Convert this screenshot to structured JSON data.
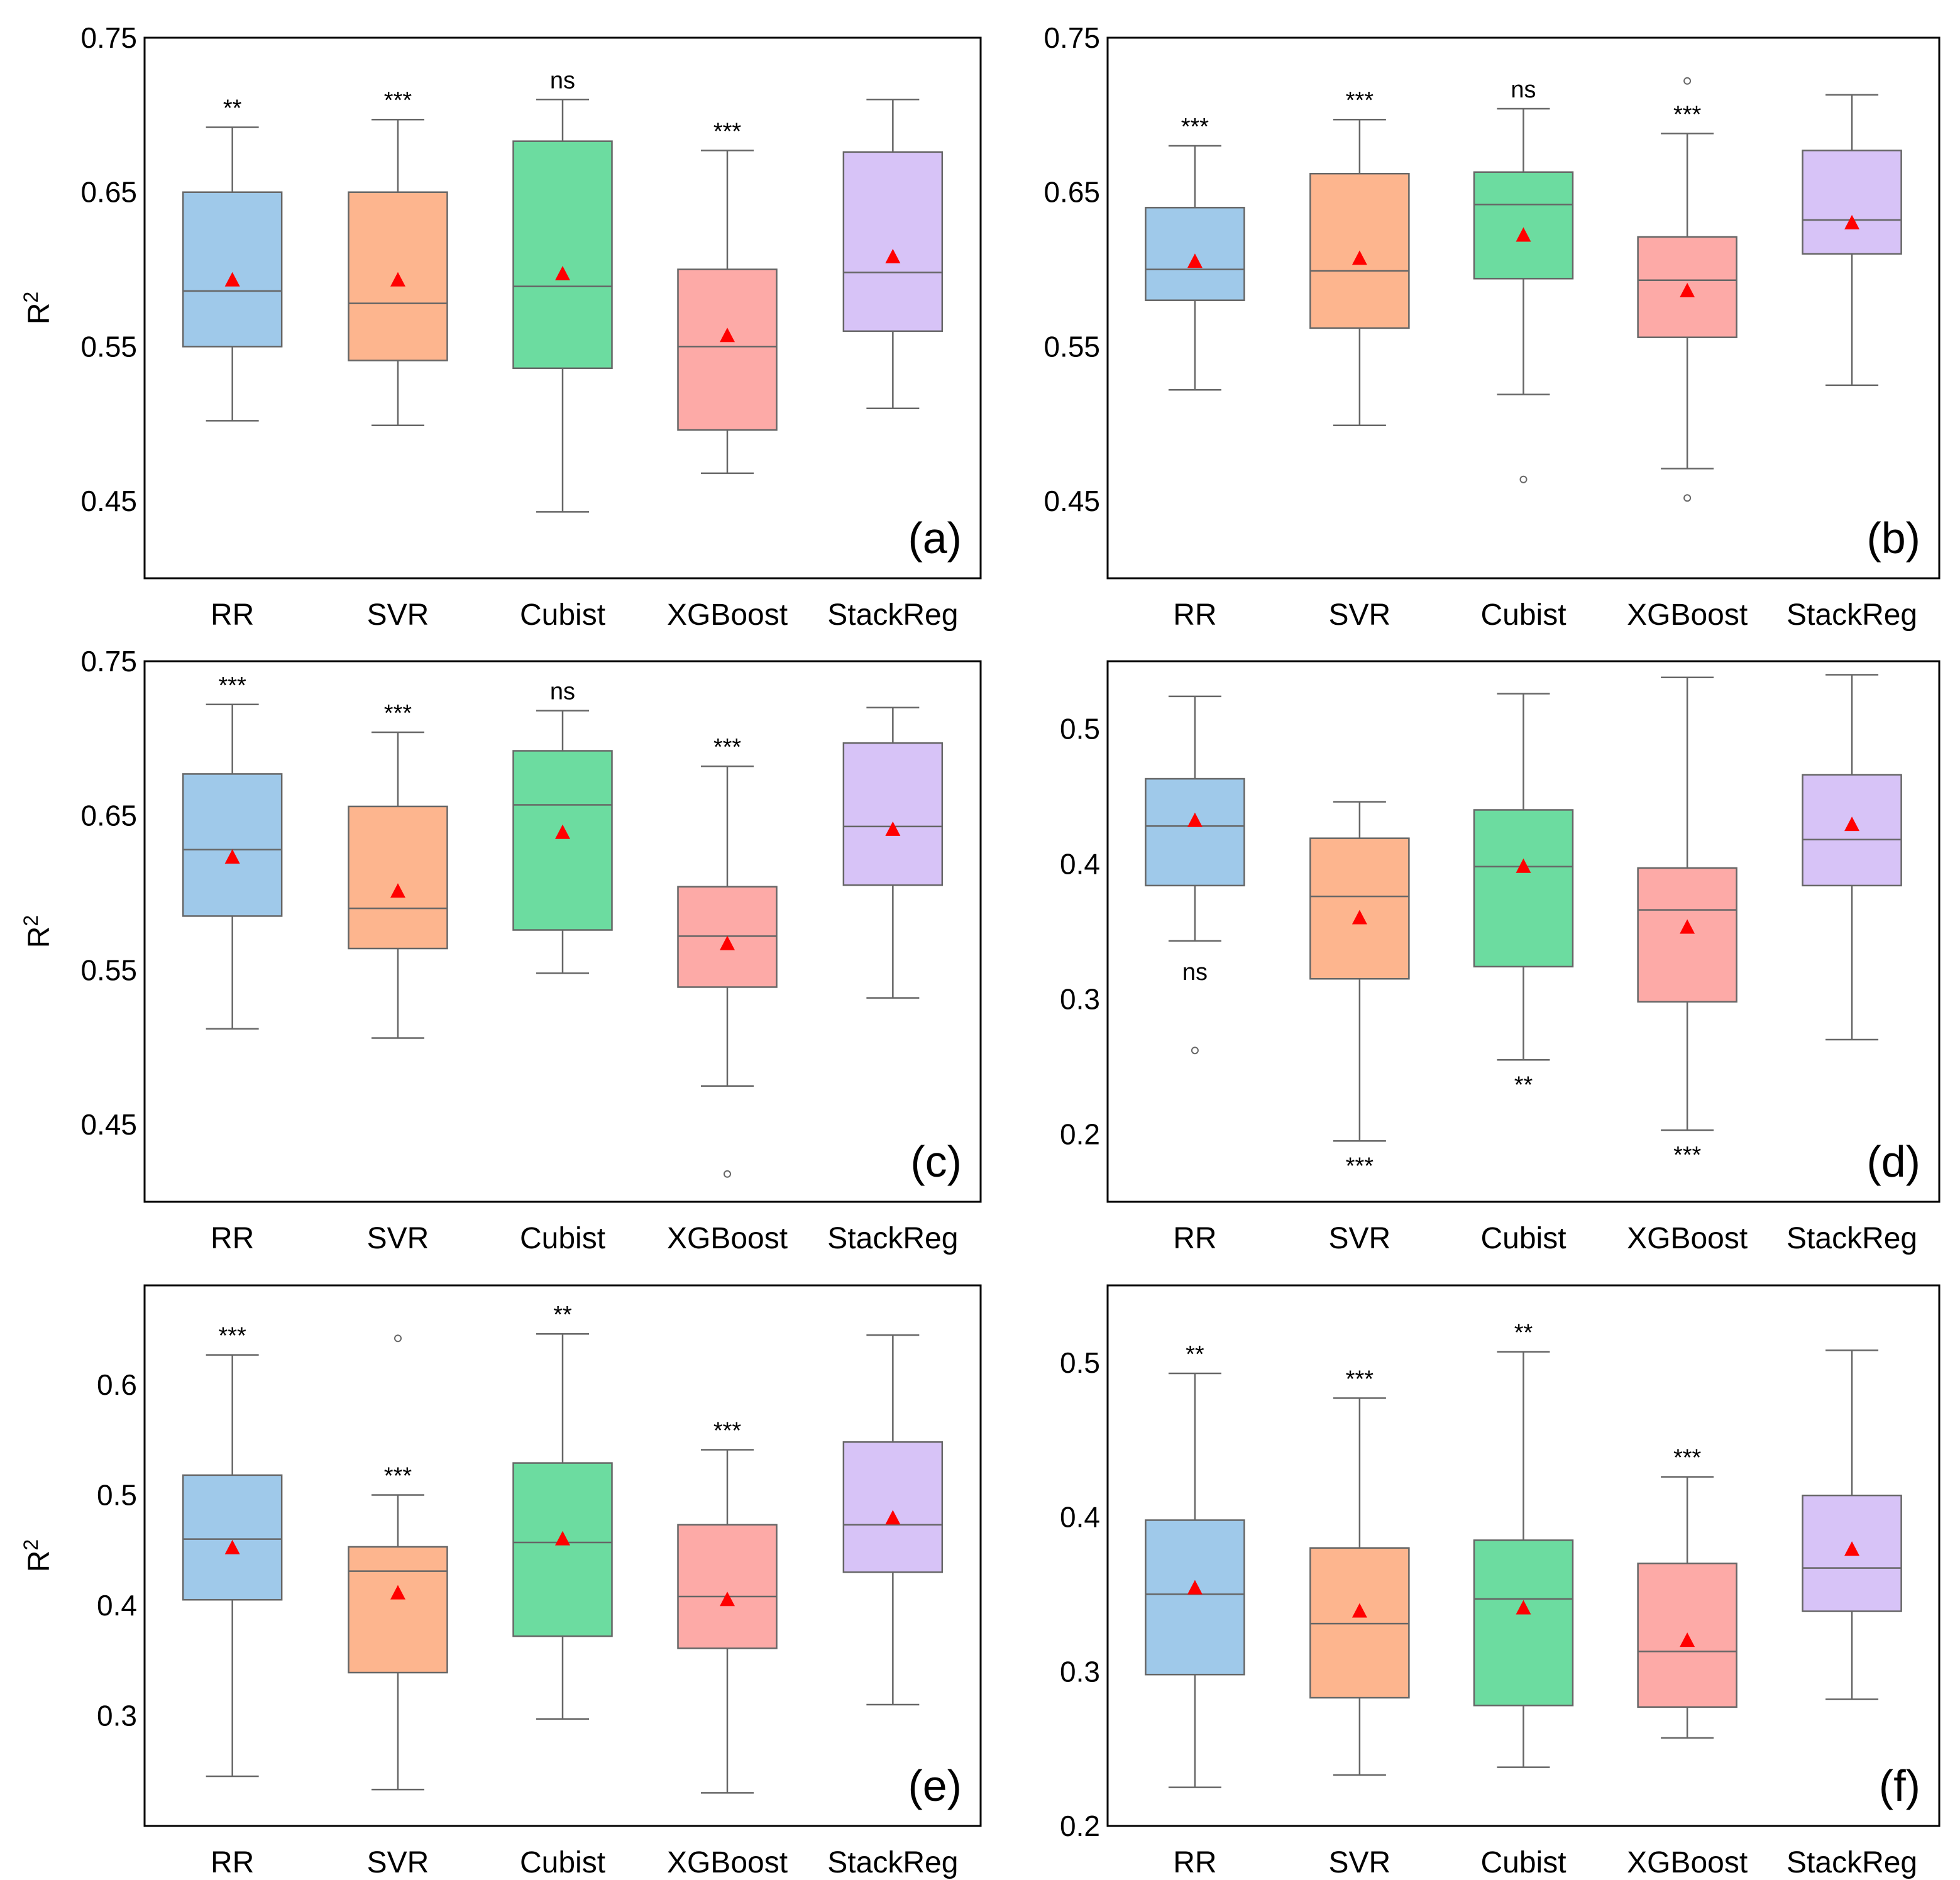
{
  "chart_data": [
    {
      "type": "box",
      "panel_label": "(a)",
      "ylabel": "R2",
      "ylim": [
        0.4,
        0.75
      ],
      "yticks": [
        "0.45",
        "0.55",
        "0.65",
        "0.75"
      ],
      "categories": [
        "RR",
        "SVR",
        "Cubist",
        "XGBoost",
        "StackReg"
      ],
      "boxes": [
        {
          "whisker_low": 0.502,
          "q1": 0.55,
          "median": 0.586,
          "q3": 0.65,
          "whisker_high": 0.692,
          "mean": 0.593,
          "outliers": [],
          "sig": "**",
          "sig_pos": "top"
        },
        {
          "whisker_low": 0.499,
          "q1": 0.541,
          "median": 0.578,
          "q3": 0.65,
          "whisker_high": 0.697,
          "mean": 0.593,
          "outliers": [],
          "sig": "***",
          "sig_pos": "top"
        },
        {
          "whisker_low": 0.443,
          "q1": 0.536,
          "median": 0.589,
          "q3": 0.683,
          "whisker_high": 0.71,
          "mean": 0.597,
          "outliers": [],
          "sig": "ns",
          "sig_pos": "top"
        },
        {
          "whisker_low": 0.468,
          "q1": 0.496,
          "median": 0.55,
          "q3": 0.6,
          "whisker_high": 0.677,
          "mean": 0.557,
          "outliers": [],
          "sig": "***",
          "sig_pos": "top"
        },
        {
          "whisker_low": 0.51,
          "q1": 0.56,
          "median": 0.598,
          "q3": 0.676,
          "whisker_high": 0.71,
          "mean": 0.608,
          "outliers": [],
          "sig": "",
          "sig_pos": "top"
        }
      ]
    },
    {
      "type": "box",
      "panel_label": "(b)",
      "ylabel": "",
      "ylim": [
        0.4,
        0.75
      ],
      "yticks": [
        "0.45",
        "0.55",
        "0.65",
        "0.75"
      ],
      "categories": [
        "RR",
        "SVR",
        "Cubist",
        "XGBoost",
        "StackReg"
      ],
      "boxes": [
        {
          "whisker_low": 0.522,
          "q1": 0.58,
          "median": 0.6,
          "q3": 0.64,
          "whisker_high": 0.68,
          "mean": 0.605,
          "outliers": [],
          "sig": "***",
          "sig_pos": "top"
        },
        {
          "whisker_low": 0.499,
          "q1": 0.562,
          "median": 0.599,
          "q3": 0.662,
          "whisker_high": 0.697,
          "mean": 0.607,
          "outliers": [],
          "sig": "***",
          "sig_pos": "top"
        },
        {
          "whisker_low": 0.519,
          "q1": 0.594,
          "median": 0.642,
          "q3": 0.663,
          "whisker_high": 0.704,
          "mean": 0.622,
          "outliers": [
            0.464
          ],
          "sig": "ns",
          "sig_pos": "top"
        },
        {
          "whisker_low": 0.471,
          "q1": 0.556,
          "median": 0.593,
          "q3": 0.621,
          "whisker_high": 0.688,
          "mean": 0.586,
          "outliers": [
            0.452,
            0.722
          ],
          "sig": "***",
          "sig_pos": "top"
        },
        {
          "whisker_low": 0.525,
          "q1": 0.61,
          "median": 0.632,
          "q3": 0.677,
          "whisker_high": 0.713,
          "mean": 0.63,
          "outliers": [],
          "sig": "",
          "sig_pos": "top"
        }
      ]
    },
    {
      "type": "box",
      "panel_label": "(c)",
      "ylabel": "R2",
      "ylim": [
        0.4,
        0.75
      ],
      "yticks": [
        "0.45",
        "0.55",
        "0.65",
        "0.75"
      ],
      "categories": [
        "RR",
        "SVR",
        "Cubist",
        "XGBoost",
        "StackReg"
      ],
      "boxes": [
        {
          "whisker_low": 0.512,
          "q1": 0.585,
          "median": 0.628,
          "q3": 0.677,
          "whisker_high": 0.722,
          "mean": 0.623,
          "outliers": [],
          "sig": "***",
          "sig_pos": "top"
        },
        {
          "whisker_low": 0.506,
          "q1": 0.564,
          "median": 0.59,
          "q3": 0.656,
          "whisker_high": 0.704,
          "mean": 0.601,
          "outliers": [],
          "sig": "***",
          "sig_pos": "top"
        },
        {
          "whisker_low": 0.548,
          "q1": 0.576,
          "median": 0.657,
          "q3": 0.692,
          "whisker_high": 0.718,
          "mean": 0.639,
          "outliers": [],
          "sig": "ns",
          "sig_pos": "top"
        },
        {
          "whisker_low": 0.475,
          "q1": 0.539,
          "median": 0.572,
          "q3": 0.604,
          "whisker_high": 0.682,
          "mean": 0.567,
          "outliers": [
            0.418
          ],
          "sig": "***",
          "sig_pos": "top"
        },
        {
          "whisker_low": 0.532,
          "q1": 0.605,
          "median": 0.643,
          "q3": 0.697,
          "whisker_high": 0.72,
          "mean": 0.641,
          "outliers": [],
          "sig": "",
          "sig_pos": "top"
        }
      ]
    },
    {
      "type": "box",
      "panel_label": "(d)",
      "ylabel": "",
      "ylim": [
        0.15,
        0.55
      ],
      "yticks": [
        "0.2",
        "0.3",
        "0.4",
        "0.5"
      ],
      "categories": [
        "RR",
        "SVR",
        "Cubist",
        "XGBoost",
        "StackReg"
      ],
      "boxes": [
        {
          "whisker_low": 0.343,
          "q1": 0.384,
          "median": 0.428,
          "q3": 0.463,
          "whisker_high": 0.524,
          "mean": 0.432,
          "outliers": [
            0.262
          ],
          "sig": "ns",
          "sig_pos": "bottom"
        },
        {
          "whisker_low": 0.195,
          "q1": 0.315,
          "median": 0.376,
          "q3": 0.419,
          "whisker_high": 0.446,
          "mean": 0.36,
          "outliers": [],
          "sig": "***",
          "sig_pos": "bottom"
        },
        {
          "whisker_low": 0.255,
          "q1": 0.324,
          "median": 0.398,
          "q3": 0.44,
          "whisker_high": 0.526,
          "mean": 0.398,
          "outliers": [],
          "sig": "**",
          "sig_pos": "bottom"
        },
        {
          "whisker_low": 0.203,
          "q1": 0.298,
          "median": 0.366,
          "q3": 0.397,
          "whisker_high": 0.538,
          "mean": 0.353,
          "outliers": [],
          "sig": "***",
          "sig_pos": "bottom"
        },
        {
          "whisker_low": 0.27,
          "q1": 0.384,
          "median": 0.418,
          "q3": 0.466,
          "whisker_high": 0.54,
          "mean": 0.429,
          "outliers": [],
          "sig": "",
          "sig_pos": "bottom"
        }
      ]
    },
    {
      "type": "box",
      "panel_label": "(e)",
      "ylabel": "R2",
      "ylim": [
        0.2,
        0.69
      ],
      "yticks": [
        "0.3",
        "0.4",
        "0.5",
        "0.6"
      ],
      "categories": [
        "RR",
        "SVR",
        "Cubist",
        "XGBoost",
        "StackReg"
      ],
      "boxes": [
        {
          "whisker_low": 0.245,
          "q1": 0.405,
          "median": 0.46,
          "q3": 0.518,
          "whisker_high": 0.627,
          "mean": 0.452,
          "outliers": [],
          "sig": "***",
          "sig_pos": "top"
        },
        {
          "whisker_low": 0.233,
          "q1": 0.339,
          "median": 0.431,
          "q3": 0.453,
          "whisker_high": 0.5,
          "mean": 0.411,
          "outliers": [
            0.642
          ],
          "sig": "***",
          "sig_pos": "top"
        },
        {
          "whisker_low": 0.297,
          "q1": 0.372,
          "median": 0.457,
          "q3": 0.529,
          "whisker_high": 0.646,
          "mean": 0.46,
          "outliers": [],
          "sig": "**",
          "sig_pos": "top"
        },
        {
          "whisker_low": 0.23,
          "q1": 0.361,
          "median": 0.408,
          "q3": 0.473,
          "whisker_high": 0.541,
          "mean": 0.405,
          "outliers": [],
          "sig": "***",
          "sig_pos": "top"
        },
        {
          "whisker_low": 0.31,
          "q1": 0.43,
          "median": 0.473,
          "q3": 0.548,
          "whisker_high": 0.645,
          "mean": 0.479,
          "outliers": [],
          "sig": "",
          "sig_pos": "top"
        }
      ]
    },
    {
      "type": "box",
      "panel_label": "(f)",
      "ylabel": "",
      "ylim": [
        0.2,
        0.55
      ],
      "yticks": [
        "0.2",
        "0.3",
        "0.4",
        "0.5"
      ],
      "categories": [
        "RR",
        "SVR",
        "Cubist",
        "XGBoost",
        "StackReg"
      ],
      "boxes": [
        {
          "whisker_low": 0.225,
          "q1": 0.298,
          "median": 0.35,
          "q3": 0.398,
          "whisker_high": 0.493,
          "mean": 0.354,
          "outliers": [],
          "sig": "**",
          "sig_pos": "top"
        },
        {
          "whisker_low": 0.233,
          "q1": 0.283,
          "median": 0.331,
          "q3": 0.38,
          "whisker_high": 0.477,
          "mean": 0.339,
          "outliers": [],
          "sig": "***",
          "sig_pos": "top"
        },
        {
          "whisker_low": 0.238,
          "q1": 0.278,
          "median": 0.347,
          "q3": 0.385,
          "whisker_high": 0.507,
          "mean": 0.341,
          "outliers": [],
          "sig": "**",
          "sig_pos": "top"
        },
        {
          "whisker_low": 0.257,
          "q1": 0.277,
          "median": 0.313,
          "q3": 0.37,
          "whisker_high": 0.426,
          "mean": 0.32,
          "outliers": [],
          "sig": "***",
          "sig_pos": "top"
        },
        {
          "whisker_low": 0.282,
          "q1": 0.339,
          "median": 0.367,
          "q3": 0.414,
          "whisker_high": 0.508,
          "mean": 0.379,
          "outliers": [],
          "sig": "",
          "sig_pos": "top"
        }
      ]
    }
  ],
  "colors": {
    "box_fills": [
      "#9fc9ea",
      "#fdb58e",
      "#6cdca0",
      "#fdaaa7",
      "#d7c3f7"
    ],
    "line": "#666666",
    "mean_marker": "#ff0000",
    "frame": "#000000"
  },
  "marker_names": {
    "mean": "mean-triangle-marker",
    "outlier": "outlier-circle-marker"
  }
}
